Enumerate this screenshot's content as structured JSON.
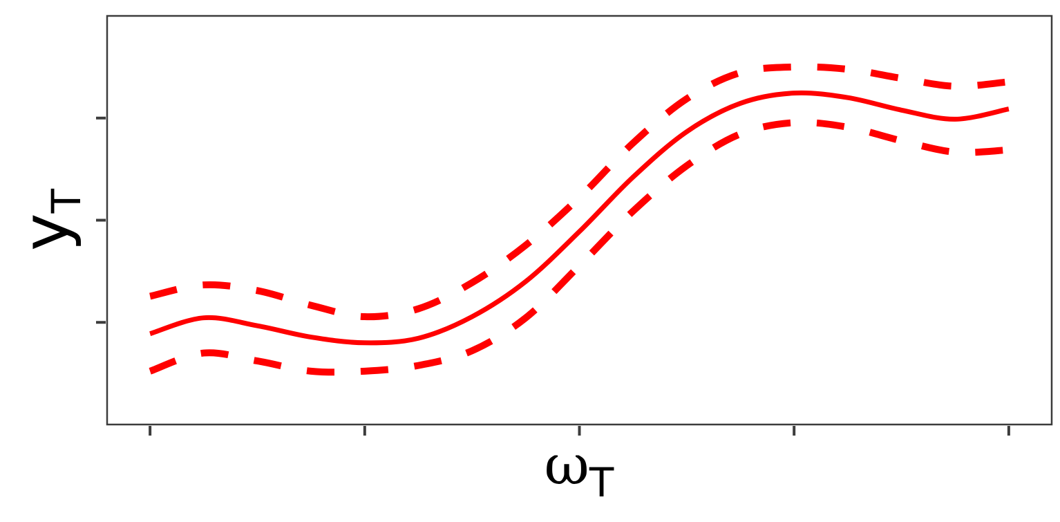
{
  "chart_data": {
    "type": "line",
    "xlabel": "ω",
    "xlabel_subscript": "T",
    "ylabel": "y",
    "ylabel_subscript": "T",
    "x_tick_count": 5,
    "y_tick_count": 3,
    "xlim": [
      -0.2,
      4.2
    ],
    "ylim": [
      -1.8,
      1.8
    ],
    "x": [
      0,
      0.25,
      0.5,
      0.75,
      1,
      1.25,
      1.5,
      1.75,
      2,
      2.25,
      2.5,
      2.75,
      3,
      3.25,
      3.5,
      3.75,
      4
    ],
    "series": [
      {
        "role": "mean",
        "style": "solid",
        "color": "#ff0000",
        "values": [
          -1.0,
          -0.86,
          -0.93,
          -1.03,
          -1.08,
          -1.04,
          -0.85,
          -0.54,
          -0.1,
          0.38,
          0.78,
          1.03,
          1.12,
          1.08,
          0.97,
          0.89,
          0.98
        ]
      },
      {
        "role": "upper-bound",
        "style": "dashed",
        "color": "#ff0000",
        "values": [
          -0.67,
          -0.57,
          -0.62,
          -0.75,
          -0.85,
          -0.78,
          -0.55,
          -0.22,
          0.2,
          0.68,
          1.07,
          1.3,
          1.35,
          1.33,
          1.25,
          1.18,
          1.22
        ]
      },
      {
        "role": "lower-bound",
        "style": "dashed",
        "color": "#ff0000",
        "values": [
          -1.33,
          -1.17,
          -1.24,
          -1.33,
          -1.33,
          -1.28,
          -1.15,
          -0.86,
          -0.4,
          0.08,
          0.48,
          0.76,
          0.86,
          0.82,
          0.7,
          0.6,
          0.62
        ]
      }
    ]
  }
}
